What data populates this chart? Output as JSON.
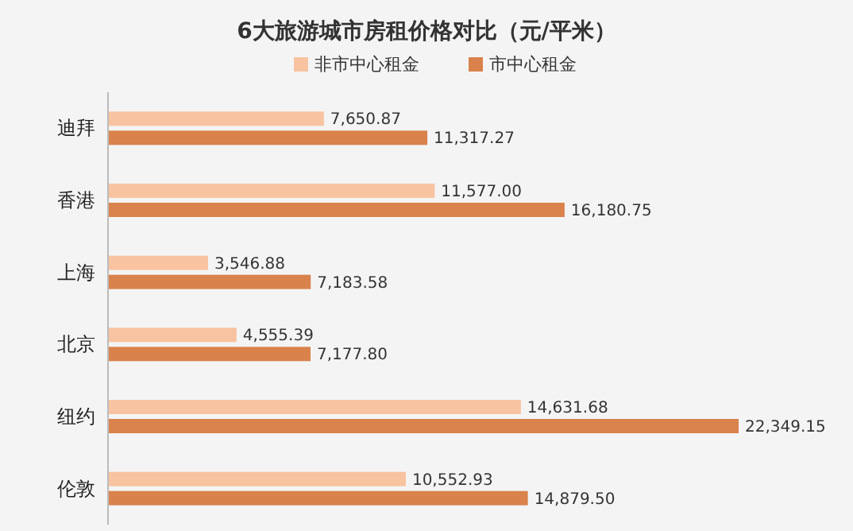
{
  "chart_data": {
    "type": "bar",
    "orientation": "horizontal",
    "title": "6大旅游城市房租价格对比（元/平米）",
    "categories": [
      "迪拜",
      "香港",
      "上海",
      "北京",
      "纽约",
      "伦敦"
    ],
    "series": [
      {
        "name": "非市中心租金",
        "color": "#f8c3a0",
        "values": [
          7650.87,
          11577.0,
          3546.88,
          4555.39,
          14631.68,
          10552.93
        ],
        "value_labels": [
          "7,650.87",
          "11,577.00",
          "3,546.88",
          "4,555.39",
          "14,631.68",
          "10,552.93"
        ]
      },
      {
        "name": "市中心租金",
        "color": "#d9824c",
        "values": [
          11317.27,
          16180.75,
          7183.58,
          7177.8,
          22349.15,
          14879.5
        ],
        "value_labels": [
          "11,317.27",
          "16,180.75",
          "7,183.58",
          "7,177.80",
          "22,349.15",
          "14,879.50"
        ]
      }
    ],
    "legend": "top"
  }
}
